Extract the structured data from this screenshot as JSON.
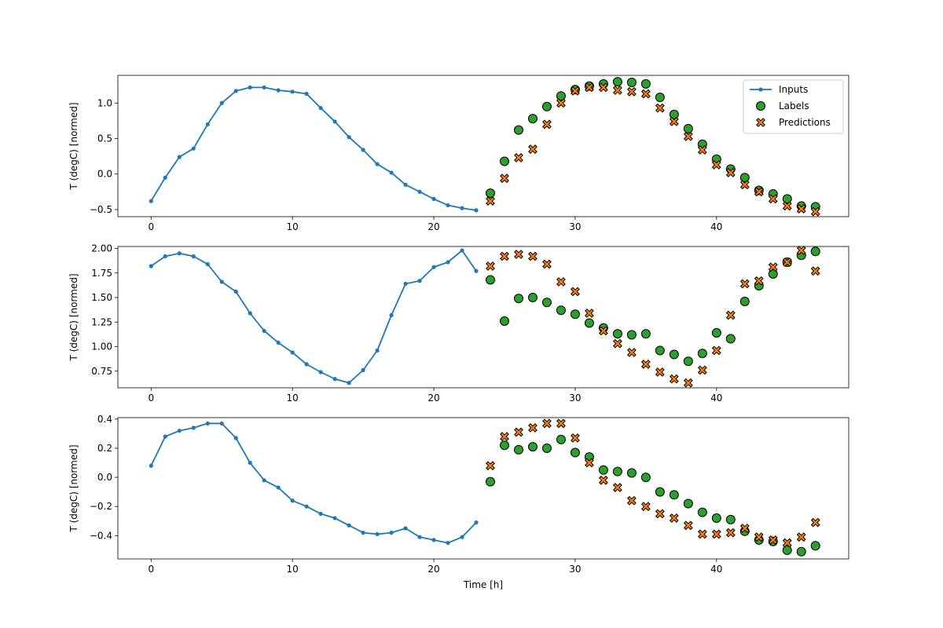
{
  "chart_data": [
    {
      "type": "line",
      "xlim": [
        -2.35,
        49.35
      ],
      "ylim": [
        -0.6,
        1.39
      ],
      "xticks": [
        0,
        10,
        20,
        30,
        40
      ],
      "yticks": [
        -0.5,
        0.0,
        0.5,
        1.0
      ],
      "ytick_labels": [
        "−0.5",
        "0.0",
        "0.5",
        "1.0"
      ],
      "ylabel": "T (degC) [normed]",
      "xlabel": "",
      "legend": {
        "placement": "top-right",
        "entries": [
          "Inputs",
          "Labels",
          "Predictions"
        ]
      },
      "series": [
        {
          "name": "Inputs",
          "kind": "line-marker",
          "x": [
            0,
            1,
            2,
            3,
            4,
            5,
            6,
            7,
            8,
            9,
            10,
            11,
            12,
            13,
            14,
            15,
            16,
            17,
            18,
            19,
            20,
            21,
            22,
            23
          ],
          "y": [
            -0.38,
            -0.05,
            0.24,
            0.36,
            0.7,
            1.0,
            1.17,
            1.22,
            1.22,
            1.18,
            1.16,
            1.13,
            0.93,
            0.74,
            0.52,
            0.34,
            0.14,
            0.02,
            -0.15,
            -0.25,
            -0.35,
            -0.44,
            -0.48,
            -0.51
          ]
        },
        {
          "name": "Labels",
          "kind": "scatter-circle",
          "x": [
            24,
            25,
            26,
            27,
            28,
            29,
            30,
            31,
            32,
            33,
            34,
            35,
            36,
            37,
            38,
            39,
            40,
            41,
            42,
            43,
            44,
            45,
            46,
            47
          ],
          "y": [
            -0.27,
            0.18,
            0.62,
            0.78,
            0.95,
            1.1,
            1.19,
            1.24,
            1.27,
            1.3,
            1.29,
            1.27,
            1.08,
            0.84,
            0.64,
            0.42,
            0.21,
            0.07,
            -0.05,
            -0.23,
            -0.28,
            -0.35,
            -0.45,
            -0.46
          ]
        },
        {
          "name": "Predictions",
          "kind": "scatter-x",
          "x": [
            24,
            25,
            26,
            27,
            28,
            29,
            30,
            31,
            32,
            33,
            34,
            35,
            36,
            37,
            38,
            39,
            40,
            41,
            42,
            43,
            44,
            45,
            46,
            47
          ],
          "y": [
            -0.38,
            -0.06,
            0.23,
            0.35,
            0.7,
            1.0,
            1.17,
            1.22,
            1.22,
            1.18,
            1.16,
            1.13,
            0.93,
            0.74,
            0.53,
            0.34,
            0.13,
            0.02,
            -0.15,
            -0.25,
            -0.35,
            -0.45,
            -0.49,
            -0.53
          ]
        }
      ]
    },
    {
      "type": "line",
      "xlim": [
        -2.35,
        49.35
      ],
      "ylim": [
        0.58,
        2.02
      ],
      "xticks": [
        0,
        10,
        20,
        30,
        40
      ],
      "yticks": [
        0.75,
        1.0,
        1.25,
        1.5,
        1.75,
        2.0
      ],
      "ytick_labels": [
        "0.75",
        "1.00",
        "1.25",
        "1.50",
        "1.75",
        "2.00"
      ],
      "ylabel": "T (degC) [normed]",
      "xlabel": "",
      "series": [
        {
          "name": "Inputs",
          "kind": "line-marker",
          "x": [
            0,
            1,
            2,
            3,
            4,
            5,
            6,
            7,
            8,
            9,
            10,
            11,
            12,
            13,
            14,
            15,
            16,
            17,
            18,
            19,
            20,
            21,
            22,
            23
          ],
          "y": [
            1.82,
            1.92,
            1.95,
            1.92,
            1.84,
            1.66,
            1.56,
            1.34,
            1.16,
            1.04,
            0.94,
            0.82,
            0.74,
            0.67,
            0.63,
            0.76,
            0.96,
            1.32,
            1.64,
            1.67,
            1.81,
            1.86,
            1.98,
            1.77
          ]
        },
        {
          "name": "Labels",
          "kind": "scatter-circle",
          "x": [
            24,
            25,
            26,
            27,
            28,
            29,
            30,
            31,
            32,
            33,
            34,
            35,
            36,
            37,
            38,
            39,
            40,
            41,
            42,
            43,
            44,
            45,
            46,
            47
          ],
          "y": [
            1.68,
            1.26,
            1.49,
            1.5,
            1.45,
            1.37,
            1.33,
            1.24,
            1.19,
            1.13,
            1.12,
            1.13,
            0.96,
            0.92,
            0.85,
            0.93,
            1.14,
            1.08,
            1.46,
            1.62,
            1.74,
            1.86,
            1.93,
            1.97
          ]
        },
        {
          "name": "Predictions",
          "kind": "scatter-x",
          "x": [
            24,
            25,
            26,
            27,
            28,
            29,
            30,
            31,
            32,
            33,
            34,
            35,
            36,
            37,
            38,
            39,
            40,
            41,
            42,
            43,
            44,
            45,
            46,
            47
          ],
          "y": [
            1.82,
            1.92,
            1.94,
            1.92,
            1.84,
            1.66,
            1.56,
            1.34,
            1.16,
            1.03,
            0.94,
            0.82,
            0.74,
            0.67,
            0.63,
            0.76,
            0.96,
            1.32,
            1.64,
            1.67,
            1.81,
            1.86,
            1.98,
            1.77
          ]
        }
      ]
    },
    {
      "type": "line",
      "xlim": [
        -2.35,
        49.35
      ],
      "ylim": [
        -0.56,
        0.41
      ],
      "xticks": [
        0,
        10,
        20,
        30,
        40
      ],
      "yticks": [
        -0.4,
        -0.2,
        0.0,
        0.2,
        0.4
      ],
      "ytick_labels": [
        "−0.4",
        "−0.2",
        "0.0",
        "0.2",
        "0.4"
      ],
      "ylabel": "T (degC) [normed]",
      "xlabel": "Time [h]",
      "series": [
        {
          "name": "Inputs",
          "kind": "line-marker",
          "x": [
            0,
            1,
            2,
            3,
            4,
            5,
            6,
            7,
            8,
            9,
            10,
            11,
            12,
            13,
            14,
            15,
            16,
            17,
            18,
            19,
            20,
            21,
            22,
            23
          ],
          "y": [
            0.08,
            0.28,
            0.32,
            0.34,
            0.37,
            0.37,
            0.27,
            0.1,
            -0.02,
            -0.07,
            -0.16,
            -0.2,
            -0.25,
            -0.28,
            -0.33,
            -0.38,
            -0.39,
            -0.38,
            -0.35,
            -0.41,
            -0.43,
            -0.45,
            -0.41,
            -0.31
          ]
        },
        {
          "name": "Labels",
          "kind": "scatter-circle",
          "x": [
            24,
            25,
            26,
            27,
            28,
            29,
            30,
            31,
            32,
            33,
            34,
            35,
            36,
            37,
            38,
            39,
            40,
            41,
            42,
            43,
            44,
            45,
            46,
            47
          ],
          "y": [
            -0.03,
            0.22,
            0.19,
            0.21,
            0.2,
            0.26,
            0.17,
            0.14,
            0.05,
            0.04,
            0.03,
            0.0,
            -0.1,
            -0.12,
            -0.18,
            -0.24,
            -0.28,
            -0.29,
            -0.37,
            -0.43,
            -0.44,
            -0.5,
            -0.51,
            -0.47
          ]
        },
        {
          "name": "Predictions",
          "kind": "scatter-x",
          "x": [
            24,
            25,
            26,
            27,
            28,
            29,
            30,
            31,
            32,
            33,
            34,
            35,
            36,
            37,
            38,
            39,
            40,
            41,
            42,
            43,
            44,
            45,
            46,
            47
          ],
          "y": [
            0.08,
            0.28,
            0.31,
            0.34,
            0.37,
            0.37,
            0.27,
            0.1,
            -0.02,
            -0.07,
            -0.16,
            -0.2,
            -0.25,
            -0.28,
            -0.33,
            -0.39,
            -0.39,
            -0.38,
            -0.35,
            -0.41,
            -0.43,
            -0.45,
            -0.41,
            -0.31
          ]
        }
      ]
    }
  ],
  "colors": {
    "inputs": "#1f77b4",
    "labels": "#2ca02c",
    "predictions": "#ff7f0e",
    "edge": "#000000"
  }
}
